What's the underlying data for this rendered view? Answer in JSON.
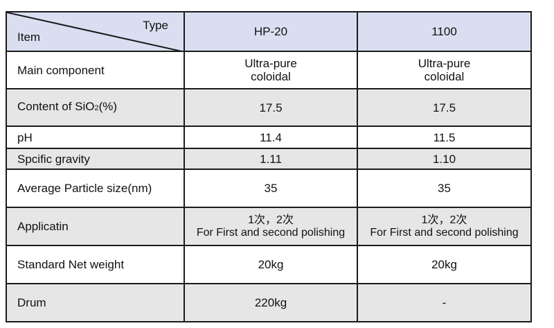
{
  "header": {
    "corner_type": "Type",
    "corner_item": "Item",
    "columns": [
      "HP-20",
      "1100"
    ]
  },
  "rows": [
    {
      "item": "Main component",
      "values": [
        [
          "Ultra-pure",
          "coloidal"
        ],
        [
          "Ultra-pure",
          "coloidal"
        ]
      ]
    },
    {
      "item_prefix": "Content of SiO",
      "item_sub": "2",
      "item_suffix": "(%)",
      "values": [
        "17.5",
        "17.5"
      ]
    },
    {
      "item": "pH",
      "values": [
        "11.4",
        "11.5"
      ]
    },
    {
      "item": "Spcific gravity",
      "values": [
        "1.11",
        "1.10"
      ]
    },
    {
      "item": "Average Particle size(nm)",
      "values": [
        "35",
        "35"
      ]
    },
    {
      "item": "Applicatin",
      "values": [
        [
          "1次，2次",
          "For First and second polishing"
        ],
        [
          "1次，2次",
          "For First and second polishing"
        ]
      ]
    },
    {
      "item": "Standard Net weight",
      "values": [
        "20kg",
        "20kg"
      ]
    },
    {
      "item": "Drum",
      "values": [
        "220kg",
        "-"
      ]
    }
  ],
  "colors": {
    "header_bg": "#d9dff1",
    "alt_row_bg": "#e6e6e6",
    "border": "#1a1a1a"
  }
}
